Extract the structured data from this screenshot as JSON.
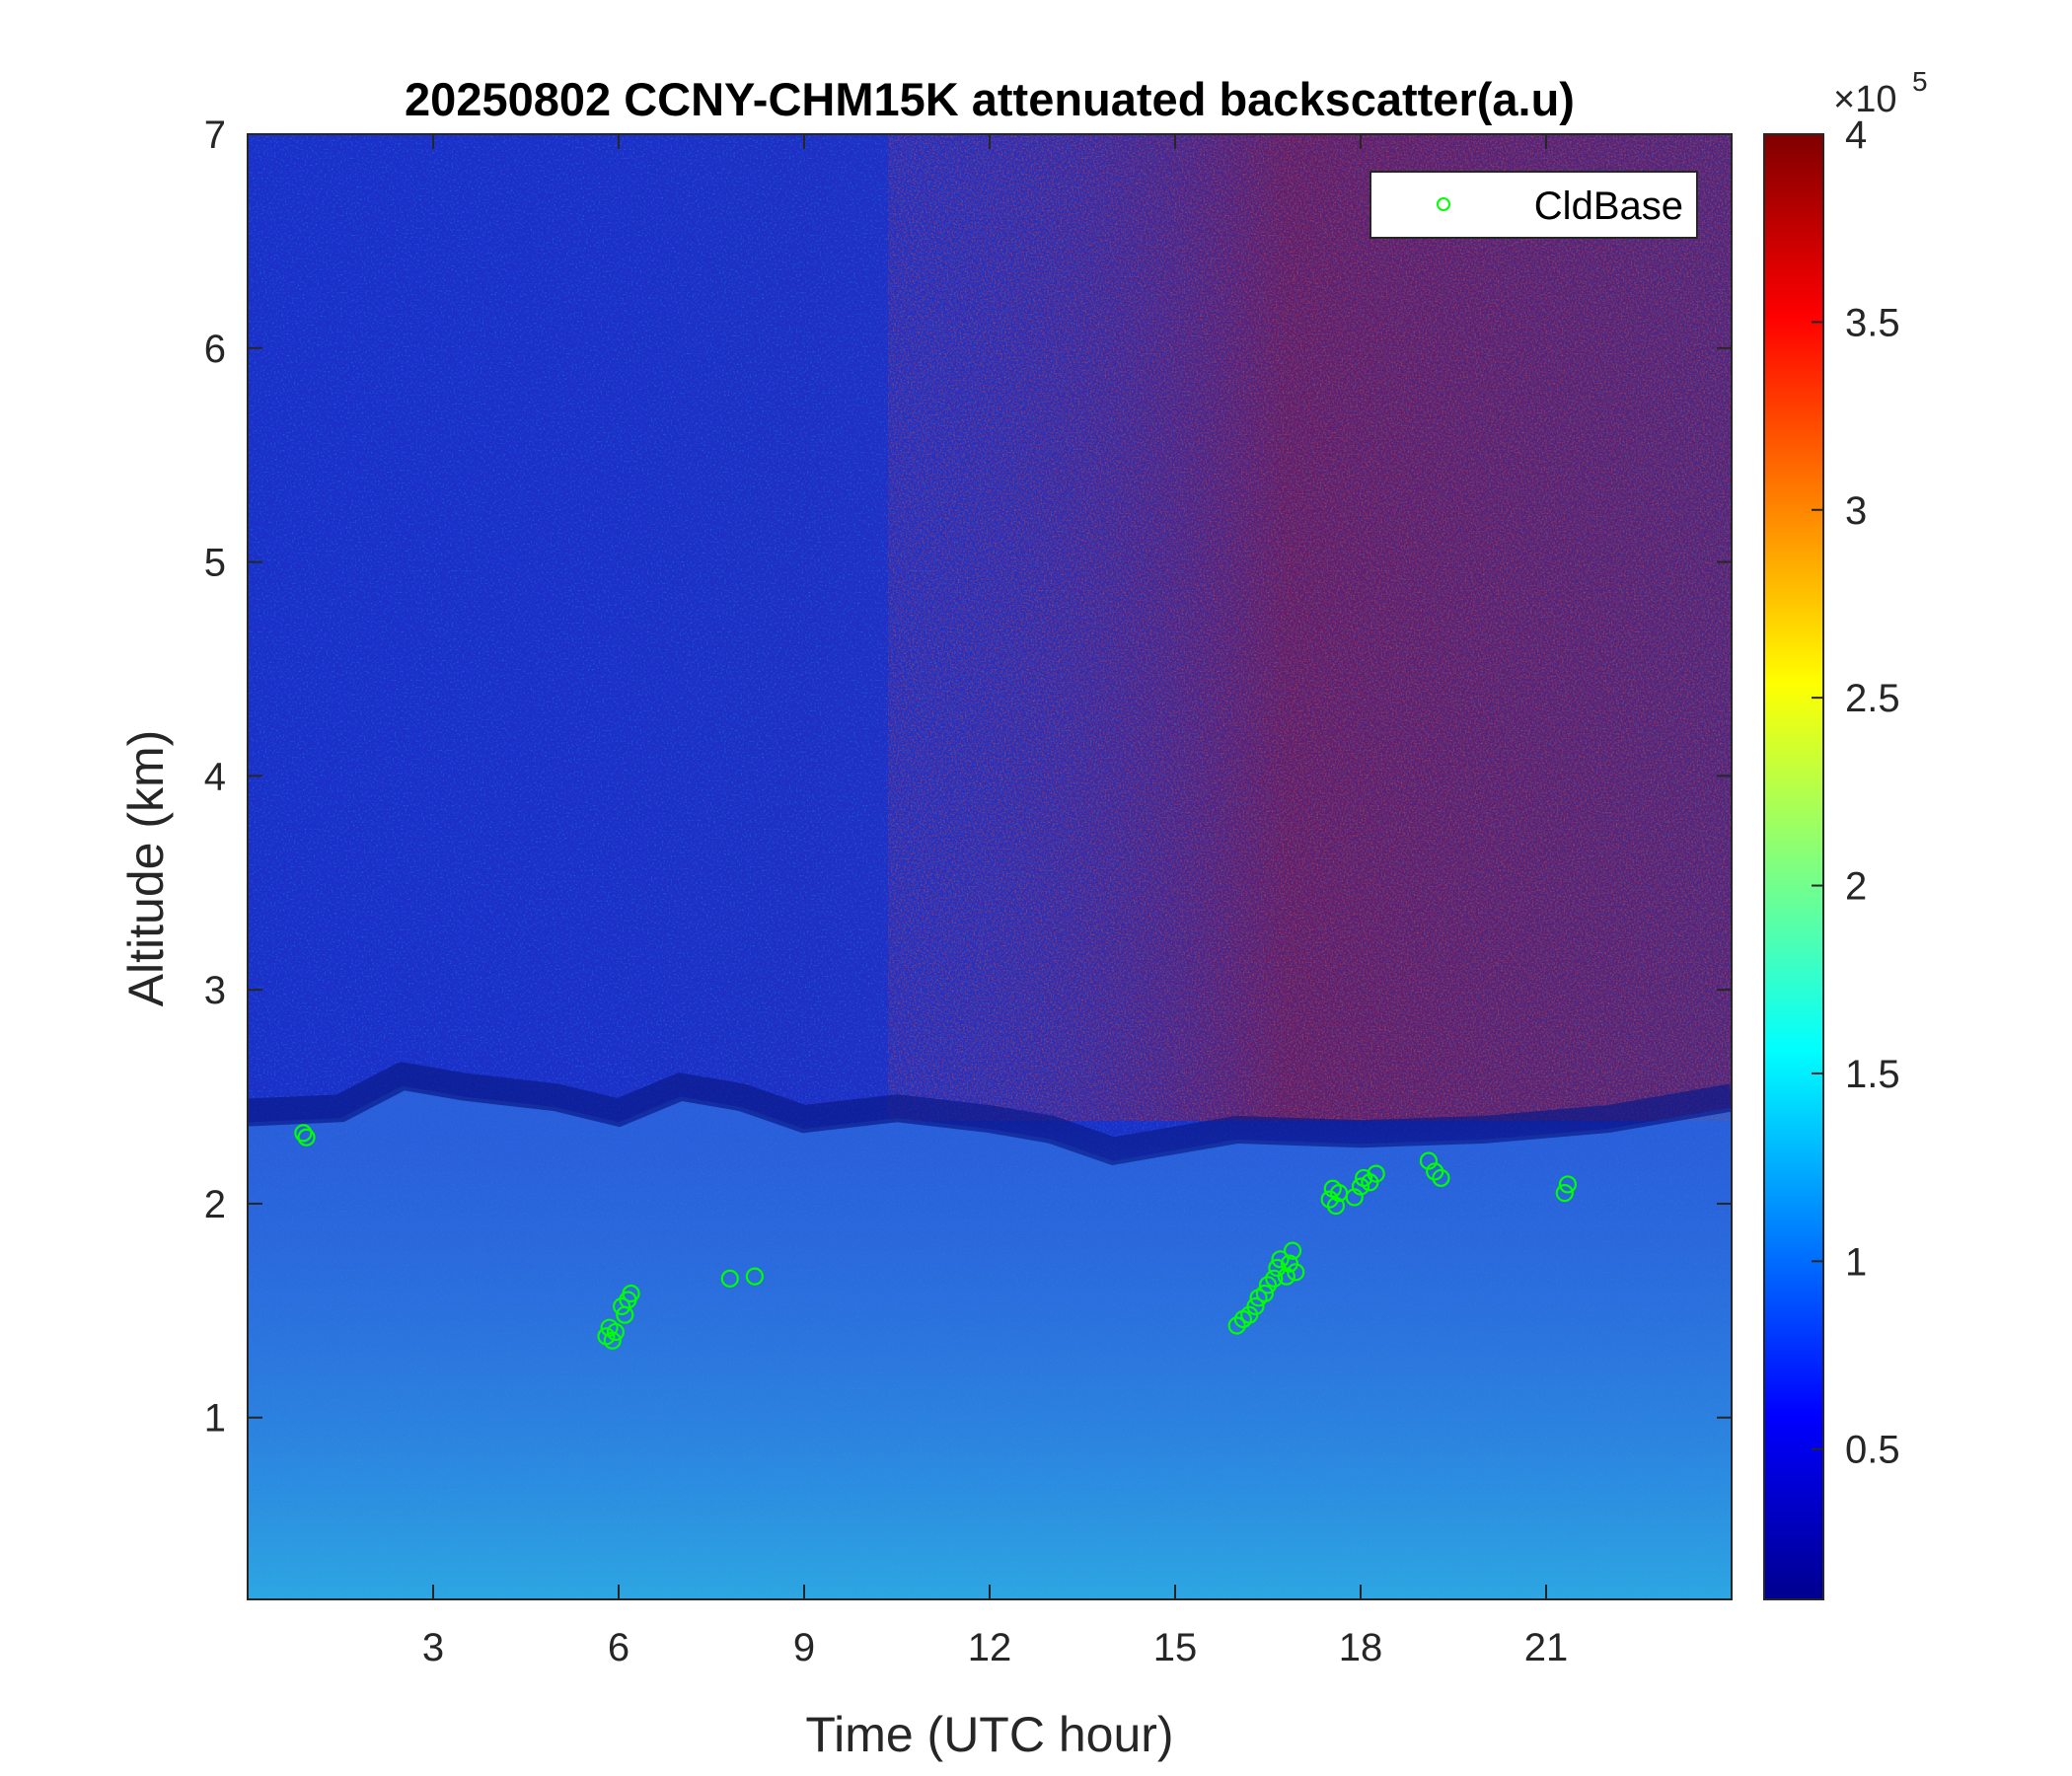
{
  "chart_data": {
    "type": "heatmap",
    "title": "20250802 CCNY-CHM15K attenuated backscatter(a.u)",
    "xlabel": "Time (UTC hour)",
    "ylabel": "Altitude (km)",
    "xlim": [
      0,
      24
    ],
    "ylim": [
      0.15,
      7
    ],
    "xticks": [
      3,
      6,
      9,
      12,
      15,
      18,
      21
    ],
    "yticks": [
      1,
      2,
      3,
      4,
      5,
      6,
      7
    ],
    "colorbar": {
      "colormap": "jet",
      "range": [
        0.1,
        4
      ],
      "ticks": [
        0.5,
        1,
        1.5,
        2,
        2.5,
        3,
        3.5,
        4
      ],
      "multiplier_base": "×10",
      "multiplier_exponent": "5"
    },
    "background": {
      "boundary_layer_top_km": [
        [
          0,
          2.38
        ],
        [
          1.5,
          2.4
        ],
        [
          2.5,
          2.55
        ],
        [
          3.5,
          2.5
        ],
        [
          5,
          2.45
        ],
        [
          6,
          2.38
        ],
        [
          7,
          2.5
        ],
        [
          8,
          2.45
        ],
        [
          9,
          2.35
        ],
        [
          10.5,
          2.4
        ],
        [
          12,
          2.35
        ],
        [
          13,
          2.3
        ],
        [
          14,
          2.2
        ],
        [
          15,
          2.25
        ],
        [
          16,
          2.3
        ],
        [
          18,
          2.28
        ],
        [
          20,
          2.3
        ],
        [
          22,
          2.35
        ],
        [
          24,
          2.45
        ]
      ]
    },
    "legend": {
      "location": "top-right",
      "entries": [
        "CldBase"
      ]
    },
    "series": [
      {
        "name": "CldBase",
        "marker": "circle",
        "color": "#00ff00",
        "points": [
          [
            0.9,
            2.33
          ],
          [
            0.95,
            2.31
          ],
          [
            5.8,
            1.38
          ],
          [
            5.85,
            1.42
          ],
          [
            5.9,
            1.36
          ],
          [
            5.95,
            1.4
          ],
          [
            6.05,
            1.52
          ],
          [
            6.1,
            1.48
          ],
          [
            6.15,
            1.55
          ],
          [
            6.2,
            1.58
          ],
          [
            7.8,
            1.65
          ],
          [
            8.2,
            1.66
          ],
          [
            16.0,
            1.43
          ],
          [
            16.1,
            1.46
          ],
          [
            16.2,
            1.48
          ],
          [
            16.3,
            1.52
          ],
          [
            16.35,
            1.56
          ],
          [
            16.45,
            1.58
          ],
          [
            16.5,
            1.62
          ],
          [
            16.6,
            1.65
          ],
          [
            16.65,
            1.7
          ],
          [
            16.7,
            1.74
          ],
          [
            16.8,
            1.66
          ],
          [
            16.85,
            1.72
          ],
          [
            16.9,
            1.78
          ],
          [
            16.95,
            1.68
          ],
          [
            17.5,
            2.02
          ],
          [
            17.55,
            2.07
          ],
          [
            17.6,
            1.99
          ],
          [
            17.65,
            2.05
          ],
          [
            17.9,
            2.03
          ],
          [
            18.0,
            2.08
          ],
          [
            18.05,
            2.12
          ],
          [
            18.15,
            2.1
          ],
          [
            18.25,
            2.14
          ],
          [
            19.1,
            2.2
          ],
          [
            19.2,
            2.15
          ],
          [
            19.3,
            2.12
          ],
          [
            21.3,
            2.05
          ],
          [
            21.35,
            2.09
          ]
        ]
      }
    ]
  }
}
